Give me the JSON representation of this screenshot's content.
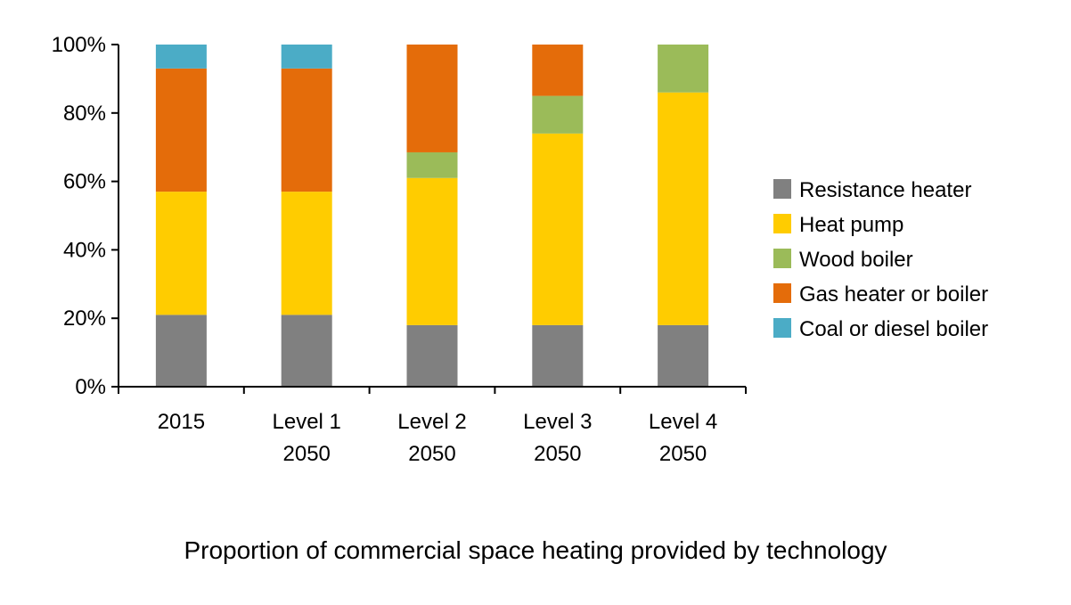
{
  "chart_data": {
    "type": "bar",
    "stacked": true,
    "categories": [
      [
        "2015"
      ],
      [
        "Level 1",
        "2050"
      ],
      [
        "Level 2",
        "2050"
      ],
      [
        "Level 3",
        "2050"
      ],
      [
        "Level 4",
        "2050"
      ]
    ],
    "ylim": [
      0,
      100
    ],
    "yticks": [
      0,
      20,
      40,
      60,
      80,
      100
    ],
    "ytick_labels": [
      "0%",
      "20%",
      "40%",
      "60%",
      "80%",
      "100%"
    ],
    "grid": false,
    "legend_position": "right",
    "series": [
      {
        "name": "Resistance heater",
        "color": "#808080",
        "values": [
          21,
          21,
          18,
          18,
          18
        ]
      },
      {
        "name": "Heat pump",
        "color": "#FFCC00",
        "values": [
          36,
          36,
          43,
          56,
          68
        ]
      },
      {
        "name": "Wood boiler",
        "color": "#9BBB59",
        "values": [
          0,
          0,
          7.5,
          11,
          14
        ]
      },
      {
        "name": "Gas heater or boiler",
        "color": "#E46C0A",
        "values": [
          36,
          36,
          31.5,
          15,
          0
        ]
      },
      {
        "name": "Coal or diesel boiler",
        "color": "#4BACC6",
        "values": [
          7,
          7,
          0,
          0,
          0
        ]
      }
    ],
    "caption": "Proportion of commercial space heating provided by technology"
  }
}
